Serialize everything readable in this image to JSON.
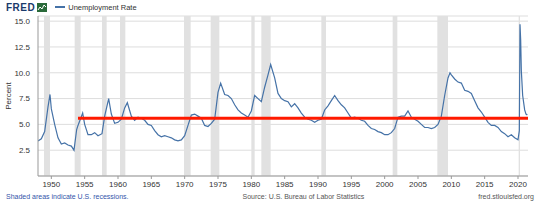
{
  "chart_data": {
    "type": "line",
    "logo": "FRED",
    "y_label": "Percent",
    "notes": [
      "Shaded areas indicate U.S. recessions.",
      "Source: U.S. Bureau of Labor Statistics",
      "fred.stlouisfed.org"
    ],
    "x": [
      1948.0,
      1948.5,
      1949.0,
      1949.5,
      1949.8,
      1950.0,
      1950.5,
      1951.0,
      1951.5,
      1952.0,
      1952.5,
      1953.0,
      1953.4,
      1953.8,
      1954.0,
      1954.7,
      1955.0,
      1955.5,
      1956.0,
      1956.5,
      1957.0,
      1957.6,
      1958.0,
      1958.6,
      1959.0,
      1959.5,
      1960.0,
      1960.5,
      1961.0,
      1961.4,
      1962.0,
      1962.5,
      1963.0,
      1963.5,
      1964.0,
      1964.5,
      1965.0,
      1965.5,
      1966.0,
      1966.5,
      1967.0,
      1967.5,
      1968.0,
      1968.5,
      1969.0,
      1969.5,
      1970.0,
      1970.5,
      1971.0,
      1971.5,
      1972.0,
      1972.5,
      1973.0,
      1973.5,
      1974.0,
      1974.5,
      1975.0,
      1975.4,
      1976.0,
      1976.5,
      1977.0,
      1977.5,
      1978.0,
      1978.5,
      1979.0,
      1979.5,
      1980.0,
      1980.5,
      1981.0,
      1981.5,
      1982.0,
      1982.5,
      1982.9,
      1983.5,
      1984.0,
      1984.5,
      1985.0,
      1985.5,
      1986.0,
      1986.5,
      1987.0,
      1987.5,
      1988.0,
      1988.5,
      1989.0,
      1989.5,
      1990.0,
      1990.5,
      1991.0,
      1991.5,
      1992.0,
      1992.5,
      1993.0,
      1993.5,
      1994.0,
      1994.5,
      1995.0,
      1995.5,
      1996.0,
      1996.5,
      1997.0,
      1997.5,
      1998.0,
      1998.5,
      1999.0,
      1999.5,
      2000.0,
      2000.5,
      2001.0,
      2001.5,
      2002.0,
      2002.5,
      2003.0,
      2003.5,
      2004.0,
      2004.5,
      2005.0,
      2005.5,
      2006.0,
      2006.5,
      2007.0,
      2007.5,
      2008.0,
      2008.5,
      2009.0,
      2009.5,
      2009.8,
      2010.0,
      2010.5,
      2011.0,
      2011.5,
      2012.0,
      2012.5,
      2013.0,
      2013.5,
      2014.0,
      2014.5,
      2015.0,
      2015.5,
      2016.0,
      2016.5,
      2017.0,
      2017.5,
      2018.0,
      2018.5,
      2019.0,
      2019.5,
      2020.0,
      2020.2,
      2020.3,
      2020.4,
      2020.5,
      2020.7,
      2021.0,
      2021.2,
      2021.4
    ],
    "series": [
      {
        "name": "Unemployment Rate",
        "color": "#4572a7",
        "values": [
          3.4,
          3.6,
          4.3,
          6.7,
          7.9,
          6.5,
          5.0,
          3.7,
          3.1,
          3.2,
          3.0,
          2.9,
          2.5,
          4.5,
          4.9,
          6.1,
          5.0,
          4.0,
          4.0,
          4.2,
          3.9,
          4.1,
          5.8,
          7.5,
          6.0,
          5.1,
          5.2,
          5.5,
          6.6,
          7.1,
          5.8,
          5.4,
          5.7,
          5.6,
          5.4,
          5.0,
          4.9,
          4.4,
          4.0,
          3.8,
          3.9,
          3.8,
          3.7,
          3.5,
          3.4,
          3.5,
          3.9,
          4.9,
          5.9,
          6.0,
          5.8,
          5.6,
          4.9,
          4.8,
          5.1,
          5.5,
          8.1,
          9.0,
          7.9,
          7.8,
          7.5,
          6.9,
          6.4,
          6.1,
          5.9,
          5.7,
          6.3,
          7.8,
          7.5,
          7.2,
          8.6,
          9.8,
          10.8,
          9.5,
          8.0,
          7.5,
          7.3,
          7.2,
          6.7,
          7.0,
          6.6,
          6.1,
          5.7,
          5.5,
          5.4,
          5.2,
          5.4,
          5.5,
          6.4,
          6.8,
          7.3,
          7.8,
          7.3,
          6.9,
          6.6,
          6.1,
          5.6,
          5.7,
          5.6,
          5.4,
          5.3,
          4.9,
          4.6,
          4.5,
          4.3,
          4.2,
          4.0,
          4.0,
          4.2,
          4.6,
          5.7,
          5.8,
          5.8,
          6.3,
          5.7,
          5.5,
          5.3,
          5.0,
          4.7,
          4.7,
          4.6,
          4.7,
          5.0,
          5.8,
          7.8,
          9.5,
          10.0,
          9.8,
          9.4,
          9.1,
          9.0,
          8.3,
          8.2,
          8.0,
          7.3,
          6.6,
          6.2,
          5.7,
          5.2,
          4.9,
          4.9,
          4.7,
          4.3,
          4.1,
          3.8,
          4.0,
          3.7,
          3.5,
          4.4,
          14.7,
          13.2,
          10.2,
          7.8,
          6.4,
          6.0,
          5.9
        ]
      }
    ],
    "recessions": [
      {
        "start": 1948.9,
        "end": 1949.8
      },
      {
        "start": 1953.5,
        "end": 1954.4
      },
      {
        "start": 1957.6,
        "end": 1958.3
      },
      {
        "start": 1960.3,
        "end": 1961.1
      },
      {
        "start": 1969.9,
        "end": 1970.9
      },
      {
        "start": 1973.9,
        "end": 1975.2
      },
      {
        "start": 1980.0,
        "end": 1980.5
      },
      {
        "start": 1981.5,
        "end": 1982.9
      },
      {
        "start": 1990.5,
        "end": 1991.2
      },
      {
        "start": 2001.2,
        "end": 2001.9
      },
      {
        "start": 2007.9,
        "end": 2009.5
      },
      {
        "start": 2020.1,
        "end": 2020.3
      }
    ],
    "reference_line": {
      "value": 5.6,
      "start": 1954,
      "end": 2021.5,
      "color": "#ff1a00"
    },
    "xlim": [
      1948,
      2021.5
    ],
    "xticks": [
      1950,
      1955,
      1960,
      1965,
      1970,
      1975,
      1980,
      1985,
      1990,
      1995,
      2000,
      2005,
      2010,
      2015,
      2020
    ],
    "ylim": [
      0,
      15.5
    ],
    "yticks": [
      2.5,
      {
        "value": 5,
        "label": "5.0"
      },
      {
        "value": 7.5,
        "label": "7.5"
      },
      {
        "value": 10,
        "label": "10.0"
      },
      12.5,
      {
        "value": 15,
        "label": "15.0"
      }
    ],
    "grid": true
  }
}
